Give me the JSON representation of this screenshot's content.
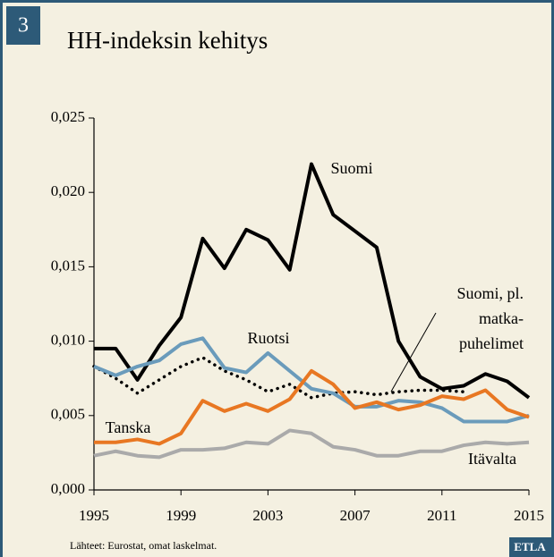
{
  "chart_data": {
    "type": "line",
    "badge": "3",
    "title": "HH-indeksin kehitys",
    "source": "Lähteet: Eurostat, omat laskelmat.",
    "logo": "ETLA",
    "x": [
      1995,
      1996,
      1997,
      1998,
      1999,
      2000,
      2001,
      2002,
      2003,
      2004,
      2005,
      2006,
      2007,
      2008,
      2009,
      2010,
      2011,
      2012,
      2013,
      2014,
      2015
    ],
    "xlim": [
      1995,
      2015
    ],
    "xticks": [
      1995,
      1999,
      2003,
      2007,
      2011,
      2015
    ],
    "ylim": [
      0,
      0.025
    ],
    "yticks": [
      {
        "value": 0,
        "label": "0,000"
      },
      {
        "value": 0.005,
        "label": "0,005"
      },
      {
        "value": 0.01,
        "label": "0,010"
      },
      {
        "value": 0.015,
        "label": "0,015"
      },
      {
        "value": 0.02,
        "label": "0,020"
      },
      {
        "value": 0.025,
        "label": "0,025"
      }
    ],
    "grid": false,
    "series": [
      {
        "name": "Suomi",
        "color": "#000000",
        "style": "solid",
        "values": [
          0.0095,
          0.0095,
          0.0074,
          0.0097,
          0.0116,
          0.0169,
          0.0149,
          0.0175,
          0.0168,
          0.0148,
          0.0219,
          0.0185,
          0.0174,
          0.0163,
          0.01,
          0.0076,
          0.0068,
          0.007,
          0.0078,
          0.0073,
          0.0062
        ]
      },
      {
        "name": [
          "Suomi, pl.",
          "matka-",
          "puhelimet"
        ],
        "color": "#000000",
        "style": "dotted",
        "values": [
          0.0083,
          0.0075,
          0.0065,
          0.0074,
          0.0083,
          0.0089,
          0.008,
          0.0074,
          0.0066,
          0.0071,
          0.0062,
          0.0065,
          0.0066,
          0.0064,
          0.0066,
          0.0067,
          0.0067,
          0.0066,
          null,
          null,
          null
        ]
      },
      {
        "name": "Ruotsi",
        "color": "#6a9bbb",
        "style": "solid",
        "values": [
          0.0083,
          0.0077,
          0.0083,
          0.0087,
          0.0098,
          0.0102,
          0.0082,
          0.0079,
          0.0092,
          0.008,
          0.0068,
          0.0065,
          0.0056,
          0.0056,
          0.006,
          0.0059,
          0.0055,
          0.0046,
          0.0046,
          0.0046,
          0.005
        ]
      },
      {
        "name": "Tanska",
        "color": "#e87722",
        "style": "solid",
        "values": [
          0.0032,
          0.0032,
          0.0034,
          0.0031,
          0.0038,
          0.006,
          0.0053,
          0.0058,
          0.0053,
          0.0061,
          0.008,
          0.0071,
          0.0055,
          0.0059,
          0.0054,
          0.0057,
          0.0063,
          0.0061,
          0.0067,
          0.0054,
          0.0049
        ]
      },
      {
        "name": "Itävalta",
        "color": "#aaaaaa",
        "style": "solid",
        "values": [
          0.0023,
          0.0026,
          0.0023,
          0.0022,
          0.0027,
          0.0027,
          0.0028,
          0.0032,
          0.0031,
          0.004,
          0.0038,
          0.0029,
          0.0027,
          0.0023,
          0.0023,
          0.0026,
          0.0026,
          0.003,
          0.0032,
          0.0031,
          0.0032
        ]
      }
    ]
  }
}
